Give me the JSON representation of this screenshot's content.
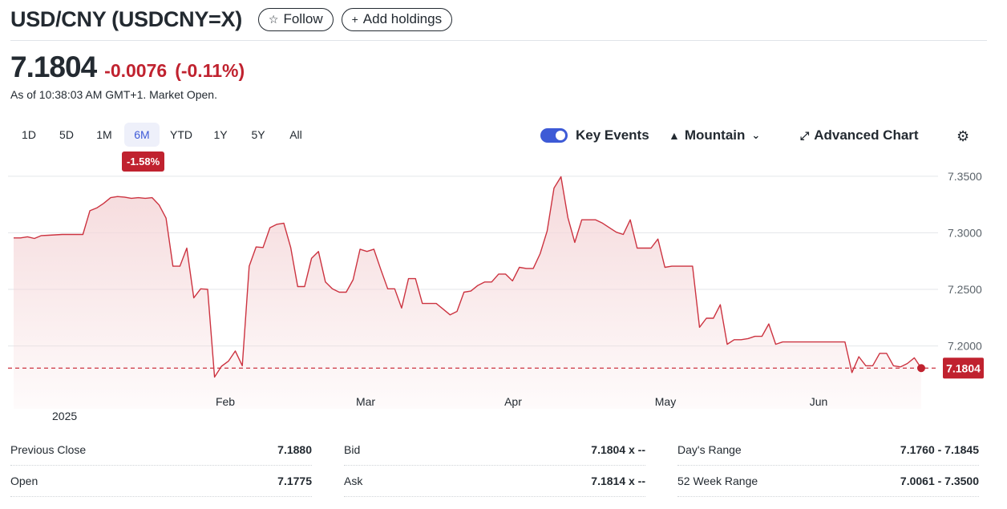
{
  "header": {
    "title": "USD/CNY (USDCNY=X)",
    "follow_label": "Follow",
    "add_holdings_label": "Add holdings"
  },
  "quote": {
    "price": "7.1804",
    "change": "-0.0076",
    "change_pct": "(-0.11%)",
    "as_of": "As of 10:38:03 AM GMT+1. Market Open."
  },
  "ranges": [
    {
      "label": "1D",
      "active": false
    },
    {
      "label": "5D",
      "active": false
    },
    {
      "label": "1M",
      "active": false
    },
    {
      "label": "6M",
      "active": true
    },
    {
      "label": "YTD",
      "active": false
    },
    {
      "label": "1Y",
      "active": false
    },
    {
      "label": "5Y",
      "active": false
    },
    {
      "label": "All",
      "active": false
    }
  ],
  "range_badge": "-1.58%",
  "toolbar": {
    "key_events_label": "Key Events",
    "key_events_on": true,
    "chart_type_label": "Mountain",
    "advanced_chart_label": "Advanced Chart",
    "icons": [
      "mountain-icon",
      "chevron-down-icon",
      "expand-icon",
      "gear-icon",
      "star-icon",
      "plus-icon"
    ]
  },
  "colors": {
    "line": "#cc3340",
    "fill": "#f5d8da",
    "badge": "#c0222f",
    "accent": "#3d5ad6",
    "grid": "#e3e6ea"
  },
  "chart_data": {
    "type": "area",
    "x_tick_labels": [
      "Feb",
      "Mar",
      "Apr",
      "May",
      "Jun"
    ],
    "year_label": "2025",
    "y_ticks": [
      "7.3500",
      "7.3000",
      "7.2500",
      "7.2000"
    ],
    "ylim": [
      7.165,
      7.352
    ],
    "last_price_label": "7.1804",
    "last_price": 7.1804,
    "reference_line": 7.1804,
    "values": [
      7.2955,
      7.2955,
      7.2965,
      7.295,
      7.2975,
      7.2978,
      7.2982,
      7.2985,
      7.2985,
      7.2985,
      7.2985,
      7.3195,
      7.322,
      7.326,
      7.331,
      7.332,
      7.3315,
      7.3305,
      7.331,
      7.3305,
      7.331,
      7.3245,
      7.313,
      7.2705,
      7.2705,
      7.2865,
      7.2425,
      7.2505,
      7.25,
      7.1725,
      7.182,
      7.1865,
      7.1955,
      7.1825,
      7.2705,
      7.2875,
      7.287,
      7.3045,
      7.3075,
      7.3085,
      7.287,
      7.2525,
      7.2525,
      7.2775,
      7.2835,
      7.2565,
      7.2505,
      7.2475,
      7.2475,
      7.2585,
      7.2855,
      7.2835,
      7.2855,
      7.2675,
      7.2505,
      7.2505,
      7.2335,
      7.2595,
      7.2595,
      7.2375,
      7.2375,
      7.2375,
      7.2325,
      7.2275,
      7.2305,
      7.2475,
      7.2485,
      7.2535,
      7.2565,
      7.2565,
      7.2635,
      7.2635,
      7.2575,
      7.2695,
      7.2685,
      7.2685,
      7.2815,
      7.3015,
      7.3395,
      7.3495,
      7.3135,
      7.2915,
      7.3115,
      7.3115,
      7.3115,
      7.3085,
      7.3045,
      7.3005,
      7.2985,
      7.3115,
      7.2865,
      7.2865,
      7.2865,
      7.2945,
      7.2695,
      7.2705,
      7.2705,
      7.2705,
      7.2705,
      7.2165,
      7.2245,
      7.2245,
      7.2365,
      7.2015,
      7.2055,
      7.2055,
      7.2065,
      7.2085,
      7.2085,
      7.2195,
      7.2015,
      7.2035,
      7.2035,
      7.2035,
      7.2035,
      7.2035,
      7.2035,
      7.2035,
      7.2035,
      7.2035,
      7.2035,
      7.1765,
      7.1905,
      7.1825,
      7.1825,
      7.1935,
      7.1935,
      7.1825,
      7.1815,
      7.1845,
      7.1895,
      7.1804
    ]
  },
  "stats": [
    [
      {
        "label": "Previous Close",
        "value": "7.1880"
      },
      {
        "label": "Open",
        "value": "7.1775"
      }
    ],
    [
      {
        "label": "Bid",
        "value": "7.1804 x --"
      },
      {
        "label": "Ask",
        "value": "7.1814 x --"
      }
    ],
    [
      {
        "label": "Day's Range",
        "value": "7.1760 - 7.1845"
      },
      {
        "label": "52 Week Range",
        "value": "7.0061 - 7.3500"
      }
    ]
  ]
}
